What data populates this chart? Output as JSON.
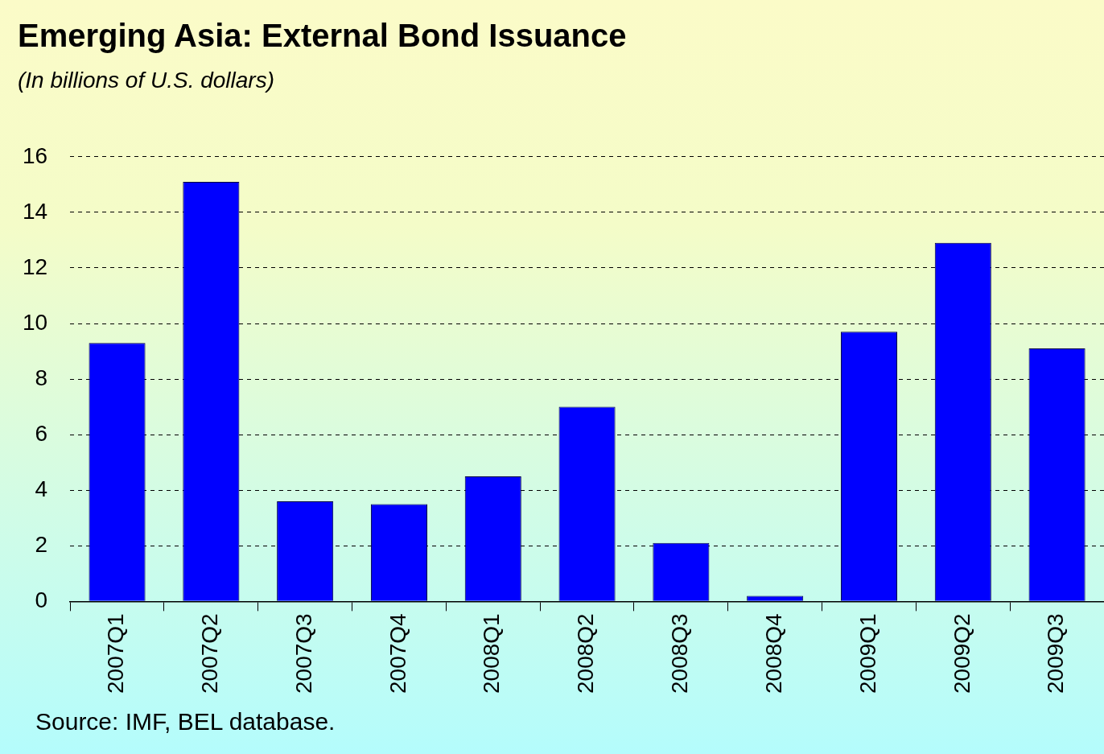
{
  "chart_data": {
    "type": "bar",
    "title": "Emerging Asia: External Bond Issuance",
    "subtitle": "(In billions of U.S. dollars)",
    "categories": [
      "2007Q1",
      "2007Q2",
      "2007Q3",
      "2007Q4",
      "2008Q1",
      "2008Q2",
      "2008Q3",
      "2008Q4",
      "2009Q1",
      "2009Q2",
      "2009Q3"
    ],
    "values": [
      9.3,
      15.1,
      3.6,
      3.5,
      4.5,
      7.0,
      2.1,
      0.2,
      9.7,
      12.9,
      9.1
    ],
    "color": "#0000ff",
    "ylim": [
      0,
      16
    ],
    "yticks": [
      0,
      2,
      4,
      6,
      8,
      10,
      12,
      14,
      16
    ],
    "grid": "y",
    "annotations": [
      "Source: IMF, BEL database."
    ]
  }
}
